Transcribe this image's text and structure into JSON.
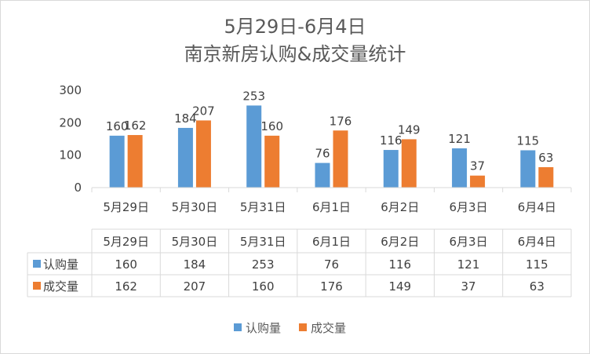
{
  "chart_data": {
    "type": "bar",
    "title_line1": "5月29日-6月4日",
    "title_line2": "南京新房认购&成交量统计",
    "categories": [
      "5月29日",
      "5月30日",
      "5月31日",
      "6月1日",
      "6月2日",
      "6月3日",
      "6月4日"
    ],
    "series": [
      {
        "name": "认购量",
        "color": "#5b9bd5",
        "values": [
          160,
          184,
          253,
          76,
          116,
          121,
          115
        ]
      },
      {
        "name": "成交量",
        "color": "#ed7d31",
        "values": [
          162,
          207,
          160,
          176,
          149,
          37,
          63
        ]
      }
    ],
    "yticks": [
      0,
      100,
      200,
      300
    ],
    "ylim": [
      0,
      300
    ],
    "grid": false,
    "legend_position": "bottom",
    "data_table": true
  }
}
